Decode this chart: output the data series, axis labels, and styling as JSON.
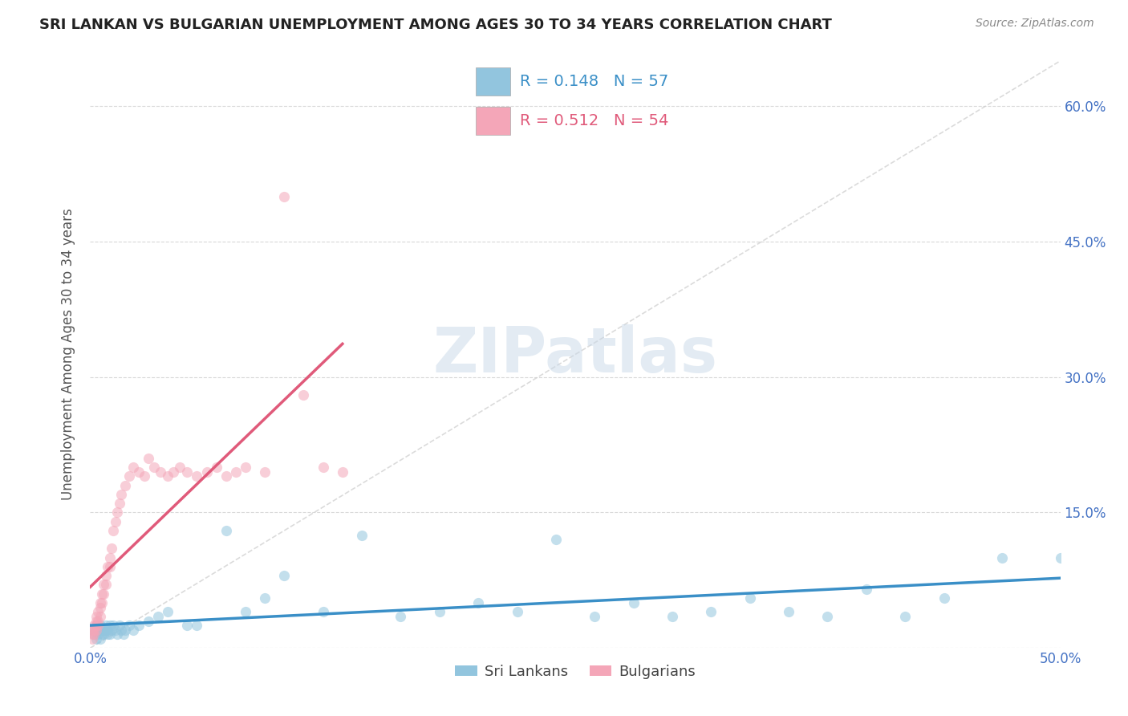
{
  "title": "SRI LANKAN VS BULGARIAN UNEMPLOYMENT AMONG AGES 30 TO 34 YEARS CORRELATION CHART",
  "source": "Source: ZipAtlas.com",
  "ylabel": "Unemployment Among Ages 30 to 34 years",
  "xlim": [
    0.0,
    0.5
  ],
  "ylim": [
    0.0,
    0.65
  ],
  "xticks": [
    0.0,
    0.1,
    0.2,
    0.3,
    0.4,
    0.5
  ],
  "xticklabels": [
    "0.0%",
    "",
    "",
    "",
    "",
    "50.0%"
  ],
  "yticks": [
    0.0,
    0.15,
    0.3,
    0.45,
    0.6
  ],
  "yticklabels_right": [
    "",
    "15.0%",
    "30.0%",
    "45.0%",
    "60.0%"
  ],
  "sri_lanka_color": "#92c5de",
  "bulgaria_color": "#f4a6b8",
  "sri_lanka_line_color": "#3a8fc7",
  "bulgaria_line_color": "#e05a7a",
  "diagonal_color": "#cccccc",
  "sri_lanka_R": 0.148,
  "sri_lanka_N": 57,
  "bulgaria_R": 0.512,
  "bulgaria_N": 54,
  "legend_label_1": "Sri Lankans",
  "legend_label_2": "Bulgarians",
  "watermark": "ZIPatlas",
  "background_color": "#ffffff",
  "grid_color": "#d0d0d0",
  "title_color": "#222222",
  "source_color": "#888888",
  "axis_label_color": "#555555",
  "tick_color_x": "#4472c4",
  "tick_color_y": "#4472c4",
  "sri_lankans_x": [
    0.001,
    0.002,
    0.003,
    0.003,
    0.004,
    0.004,
    0.005,
    0.005,
    0.006,
    0.006,
    0.007,
    0.007,
    0.008,
    0.008,
    0.009,
    0.009,
    0.01,
    0.01,
    0.011,
    0.012,
    0.013,
    0.014,
    0.015,
    0.016,
    0.017,
    0.018,
    0.02,
    0.022,
    0.025,
    0.03,
    0.035,
    0.04,
    0.05,
    0.055,
    0.07,
    0.08,
    0.09,
    0.1,
    0.12,
    0.14,
    0.16,
    0.18,
    0.2,
    0.22,
    0.24,
    0.26,
    0.28,
    0.3,
    0.32,
    0.34,
    0.36,
    0.38,
    0.4,
    0.42,
    0.44,
    0.47,
    0.5
  ],
  "sri_lankans_y": [
    0.02,
    0.015,
    0.025,
    0.01,
    0.02,
    0.015,
    0.025,
    0.01,
    0.02,
    0.015,
    0.02,
    0.015,
    0.025,
    0.02,
    0.015,
    0.02,
    0.025,
    0.015,
    0.02,
    0.025,
    0.02,
    0.015,
    0.025,
    0.02,
    0.015,
    0.02,
    0.025,
    0.02,
    0.025,
    0.03,
    0.035,
    0.04,
    0.025,
    0.025,
    0.13,
    0.04,
    0.055,
    0.08,
    0.04,
    0.125,
    0.035,
    0.04,
    0.05,
    0.04,
    0.12,
    0.035,
    0.05,
    0.035,
    0.04,
    0.055,
    0.04,
    0.035,
    0.065,
    0.035,
    0.055,
    0.1,
    0.1
  ],
  "bulgarians_x": [
    0.001,
    0.001,
    0.001,
    0.002,
    0.002,
    0.002,
    0.003,
    0.003,
    0.003,
    0.003,
    0.004,
    0.004,
    0.004,
    0.005,
    0.005,
    0.005,
    0.006,
    0.006,
    0.007,
    0.007,
    0.008,
    0.008,
    0.009,
    0.01,
    0.01,
    0.011,
    0.012,
    0.013,
    0.014,
    0.015,
    0.016,
    0.018,
    0.02,
    0.022,
    0.025,
    0.028,
    0.03,
    0.033,
    0.036,
    0.04,
    0.043,
    0.046,
    0.05,
    0.055,
    0.06,
    0.065,
    0.07,
    0.075,
    0.08,
    0.09,
    0.1,
    0.11,
    0.12,
    0.13
  ],
  "bulgarians_y": [
    0.01,
    0.02,
    0.015,
    0.02,
    0.025,
    0.015,
    0.03,
    0.025,
    0.035,
    0.02,
    0.04,
    0.03,
    0.025,
    0.045,
    0.035,
    0.05,
    0.06,
    0.05,
    0.07,
    0.06,
    0.08,
    0.07,
    0.09,
    0.1,
    0.09,
    0.11,
    0.13,
    0.14,
    0.15,
    0.16,
    0.17,
    0.18,
    0.19,
    0.2,
    0.195,
    0.19,
    0.21,
    0.2,
    0.195,
    0.19,
    0.195,
    0.2,
    0.195,
    0.19,
    0.195,
    0.2,
    0.19,
    0.195,
    0.2,
    0.195,
    0.5,
    0.28,
    0.2,
    0.195
  ]
}
